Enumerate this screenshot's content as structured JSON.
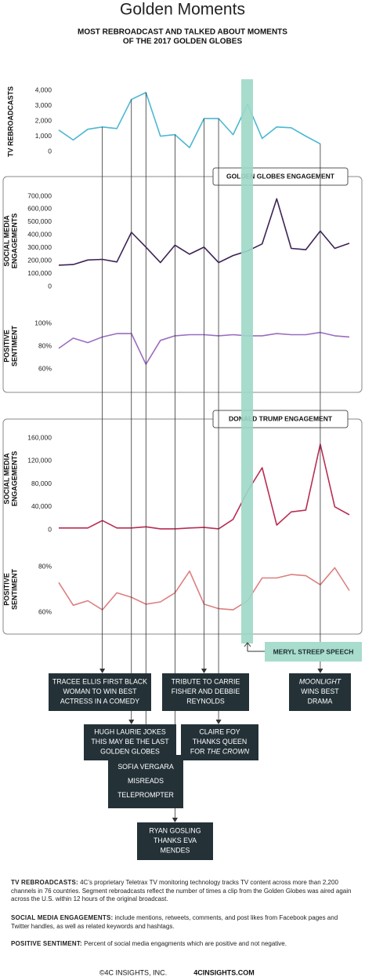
{
  "title": "Golden Moments",
  "subtitle": [
    "MOST REBROADCAST AND TALKED ABOUT MOMENTS",
    "OF THE 2017 GOLDEN GLOBES"
  ],
  "sections": [
    "GOLDEN GLOBES ENGAGEMENT",
    "DONALD TRUMP ENGAGEMENT"
  ],
  "highlight": "MERYL STREEP SPEECH",
  "chart_data": [
    {
      "type": "line",
      "y_label": [
        "TV REBROADCASTS"
      ],
      "categories": [
        null,
        null,
        null,
        null,
        null,
        null,
        null,
        null,
        null,
        null,
        null,
        null,
        null,
        null,
        null,
        null,
        null,
        null,
        null,
        null,
        null
      ],
      "series": [
        {
          "name": null,
          "color": "#4bb8d2",
          "values": [
            1400,
            750,
            1450,
            1600,
            1500,
            3400,
            3850,
            1000,
            1100,
            250,
            2150,
            2150,
            1100,
            3100,
            850,
            1600,
            1550,
            1000,
            500,
            null,
            null
          ]
        }
      ],
      "ylim": [
        0,
        4000
      ],
      "yticks": [
        0,
        {
          "value": 1000,
          "label": "1,000"
        },
        {
          "value": 2000,
          "label": "2,000"
        },
        {
          "value": 3000,
          "label": "3,000"
        },
        {
          "value": 4000,
          "label": "4,000"
        }
      ]
    },
    {
      "type": "line",
      "y_label": [
        "SOCIAL MEDIA",
        "ENGAGEMENTS"
      ],
      "categories": [
        null,
        null,
        null,
        null,
        null,
        null,
        null,
        null,
        null,
        null,
        null,
        null,
        null,
        null,
        null,
        null,
        null,
        null,
        null,
        null,
        null
      ],
      "series": [
        {
          "name": null,
          "color": "#3d2355",
          "values": [
            165000,
            170000,
            205000,
            210000,
            190000,
            420000,
            305000,
            185000,
            320000,
            250000,
            305000,
            185000,
            240000,
            275000,
            330000,
            680000,
            295000,
            285000,
            430000,
            295000,
            335000
          ]
        }
      ],
      "ylim": [
        0,
        700000
      ],
      "yticks": [
        0,
        {
          "value": 100000,
          "label": "100,000"
        },
        {
          "value": 200000,
          "label": "200,000"
        },
        {
          "value": 300000,
          "label": "300,000"
        },
        {
          "value": 400000,
          "label": "400,000"
        },
        {
          "value": 500000,
          "label": "500,000"
        },
        {
          "value": 600000,
          "label": "600,000"
        },
        {
          "value": 700000,
          "label": "700,000"
        }
      ]
    },
    {
      "type": "line",
      "y_label": [
        "POSITIVE",
        "SENTIMENT"
      ],
      "categories": [
        null,
        null,
        null,
        null,
        null,
        null,
        null,
        null,
        null,
        null,
        null,
        null,
        null,
        null,
        null,
        null,
        null,
        null,
        null,
        null,
        null
      ],
      "series": [
        {
          "name": null,
          "color": "#9b6cc0",
          "values": [
            78,
            87,
            83,
            88,
            91,
            91,
            64,
            85,
            89,
            90,
            90,
            89,
            90,
            89,
            89,
            91,
            90,
            90,
            92,
            89,
            88
          ]
        }
      ],
      "ylim": [
        60,
        100
      ],
      "yticks": [
        {
          "value": 60,
          "label": "60%"
        },
        {
          "value": 80,
          "label": "80%"
        },
        {
          "value": 100,
          "label": "100%"
        }
      ]
    },
    {
      "type": "line",
      "y_label": [
        "SOCIAL MEDIA",
        "ENGAGEMENTS"
      ],
      "categories": [
        null,
        null,
        null,
        null,
        null,
        null,
        null,
        null,
        null,
        null,
        null,
        null,
        null,
        null,
        null,
        null,
        null,
        null,
        null,
        null,
        null
      ],
      "series": [
        {
          "name": null,
          "color": "#b82d52",
          "values": [
            3000,
            3000,
            3000,
            16000,
            3000,
            3000,
            5000,
            1500,
            1500,
            3000,
            4000,
            1500,
            18000,
            67000,
            108000,
            8000,
            31000,
            34000,
            149000,
            40000,
            26000
          ]
        }
      ],
      "ylim": [
        0,
        160000
      ],
      "yticks": [
        0,
        {
          "value": 40000,
          "label": "40,000"
        },
        {
          "value": 80000,
          "label": "80,000"
        },
        {
          "value": 120000,
          "label": "120,000"
        },
        {
          "value": 160000,
          "label": "160,000"
        }
      ]
    },
    {
      "type": "line",
      "y_label": [
        "POSITIVE",
        "SENTIMENT"
      ],
      "categories": [
        null,
        null,
        null,
        null,
        null,
        null,
        null,
        null,
        null,
        null,
        null,
        null,
        null,
        null,
        null,
        null,
        null,
        null,
        null,
        null,
        null
      ],
      "series": [
        {
          "name": null,
          "color": "#dd7f80",
          "values": [
            73,
            63,
            65,
            61,
            68.5,
            66.5,
            63.5,
            64.5,
            68.5,
            78,
            63.5,
            61.5,
            61,
            65,
            75,
            75,
            76.5,
            76,
            72,
            79.5,
            69.5
          ]
        }
      ],
      "ylim": [
        60,
        80
      ],
      "yticks": [
        {
          "value": 60,
          "label": "60%"
        },
        {
          "value": 80,
          "label": "80%"
        }
      ]
    }
  ],
  "callouts": [
    {
      "lines": [
        [
          {
            "text": "TRACEE ELLIS FIRST BLACK"
          }
        ],
        [
          {
            "text": "WOMAN TO WIN BEST"
          }
        ],
        [
          {
            "text": "ACTRESS IN A COMEDY"
          }
        ]
      ]
    },
    {
      "lines": [
        [
          {
            "text": "HUGH LAURIE JOKES"
          }
        ],
        [
          {
            "text": "THIS MAY BE THE LAST"
          }
        ],
        [
          {
            "text": "GOLDEN GLOBES"
          }
        ]
      ]
    },
    {
      "lines": [
        [
          {
            "text": "SOFIA VERGARA"
          }
        ],
        [
          {
            "text": "MISREADS"
          }
        ],
        [
          {
            "text": "TELEPROMPTER"
          }
        ]
      ]
    },
    {
      "lines": [
        [
          {
            "text": "RYAN GOSLING"
          }
        ],
        [
          {
            "text": "THANKS EVA"
          }
        ],
        [
          {
            "text": "MENDES"
          }
        ]
      ]
    },
    {
      "lines": [
        [
          {
            "text": "TRIBUTE TO CARRIE"
          }
        ],
        [
          {
            "text": "FISHER AND DEBBIE"
          }
        ],
        [
          {
            "text": "REYNOLDS"
          }
        ]
      ]
    },
    {
      "lines": [
        [
          {
            "text": "CLAIRE FOY"
          }
        ],
        [
          {
            "text": "THANKS QUEEN"
          }
        ],
        [
          {
            "text": "FOR "
          },
          {
            "text": "THE CROWN",
            "italic": true
          }
        ]
      ]
    },
    {
      "lines": [
        [
          {
            "text": "MOONLIGHT",
            "italic": true
          }
        ],
        [
          {
            "text": "WINS BEST"
          }
        ],
        [
          {
            "text": "DRAMA"
          }
        ]
      ]
    }
  ],
  "notes": [
    {
      "term": "TV REBROADCASTS:",
      "text": " 4C’s proprietary Teletrax TV monitoring technology tracks TV content across more than 2,200 channels in 76 countries. Segment rebroadcasts reflect the number of times a clip from the Golden Globes was aired again across the U.S. within 12 hours of the original broadcast."
    },
    {
      "term": "SOCIAL MEDIA ENGAGEMENTS:",
      "text": " include mentions, retweets, comments, and post likes from Facebook pages and Twitter handles, as well as related keywords and hashtags."
    },
    {
      "term": "POSITIVE SENTIMENT:",
      "text": " Percent of social media engagments which are positive and not negative."
    }
  ],
  "footer": [
    "©4C INSIGHTS, INC.",
    "4CINSIGHTS.COM"
  ]
}
